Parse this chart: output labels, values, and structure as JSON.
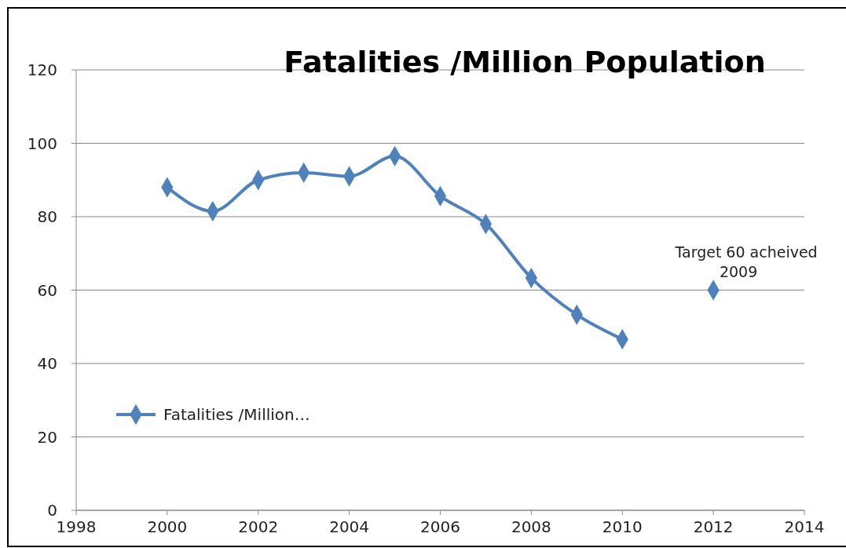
{
  "chart_data": {
    "type": "line",
    "title": "Fatalities /Million Population",
    "x": [
      2000,
      2001,
      2002,
      2003,
      2004,
      2005,
      2006,
      2007,
      2008,
      2009,
      2010
    ],
    "series": [
      {
        "name": "Fatalities /Million…",
        "color": "#4f81bd",
        "values": [
          88,
          81.5,
          90,
          92,
          91,
          96.5,
          85.6,
          78,
          63.3,
          53.3,
          46.6
        ]
      },
      {
        "type": "scatter",
        "color": "#4f81bd",
        "x": [
          2012
        ],
        "values": [
          60
        ]
      }
    ],
    "annotations": [
      {
        "text": "Target 60 acheived 2009",
        "x": 2012,
        "y": 60
      }
    ],
    "xlim": [
      1998,
      2014
    ],
    "xticks": [
      1998,
      2000,
      2002,
      2004,
      2006,
      2008,
      2010,
      2012,
      2014
    ],
    "ylim": [
      0,
      120
    ],
    "yticks": [
      0,
      20,
      40,
      60,
      80,
      100,
      120
    ],
    "grid": "y",
    "legend": "left",
    "marker": "diamond",
    "line_style": "solid"
  }
}
